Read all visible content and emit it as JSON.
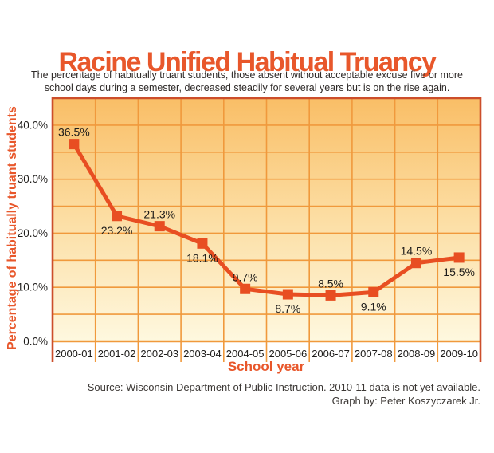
{
  "page": {
    "title": "Racine Unified Habitual Truancy",
    "subtitle_line1": "The percentage of habitually truant students, those absent without acceptable excuse five or more",
    "subtitle_line2": "school days during a semester, decreased steadily for several years but is on the rise again.",
    "source_line1": "Source: Wisconsin Department of Public Instruction. 2010-11 data is not yet available.",
    "source_line2": "Graph by: Peter Koszyczarek Jr."
  },
  "chart_data": {
    "type": "line",
    "title": "Racine Unified Habitual Truancy",
    "subtitle": "The percentage of habitually truant students, those absent without acceptable excuse five or more school days during a semester, decreased steadily for several years but is on the rise again.",
    "categories": [
      "2000-01",
      "2001-02",
      "2002-03",
      "2003-04",
      "2004-05",
      "2005-06",
      "2006-07",
      "2007-08",
      "2008-09",
      "2009-10"
    ],
    "values": [
      36.5,
      23.2,
      21.3,
      18.1,
      9.7,
      8.7,
      8.5,
      9.1,
      14.5,
      15.5
    ],
    "data_labels": [
      "36.5%",
      "23.2%",
      "21.3%",
      "18.1%",
      "9.7%",
      "8.7%",
      "8.5%",
      "9.1%",
      "14.5%",
      "15.5%"
    ],
    "label_positions": [
      "above",
      "below",
      "above",
      "below",
      "above",
      "below",
      "above",
      "below",
      "above",
      "below"
    ],
    "xlabel": "School year",
    "ylabel": "Percentage of habitually truant students",
    "y_ticks": [
      {
        "value": 0,
        "label": "0.0%"
      },
      {
        "value": 10,
        "label": "10.0%"
      },
      {
        "value": 20,
        "label": "20.0%"
      },
      {
        "value": 30,
        "label": "30.0%"
      },
      {
        "value": 40,
        "label": "40.0%"
      }
    ],
    "ylim": [
      0,
      45
    ],
    "y_minor_step": 5,
    "grid": true,
    "legend": "none",
    "source": "Source: Wisconsin Department of Public Instruction. 2010-11 data is not yet available.",
    "credit": "Graph by: Peter Koszyczarek Jr.",
    "colors": {
      "line": "#E84E22",
      "marker": "#E84E22",
      "grid": "#F0993C",
      "border": "#CC4E2B",
      "bg_top": "#F9BE66",
      "bg_mid": "#FCDEA4",
      "bg_bottom": "#FEF8DF",
      "accent_text": "#E8572B",
      "label_text": "#1E1C1A",
      "tick_text": "#1E1C1A"
    }
  }
}
